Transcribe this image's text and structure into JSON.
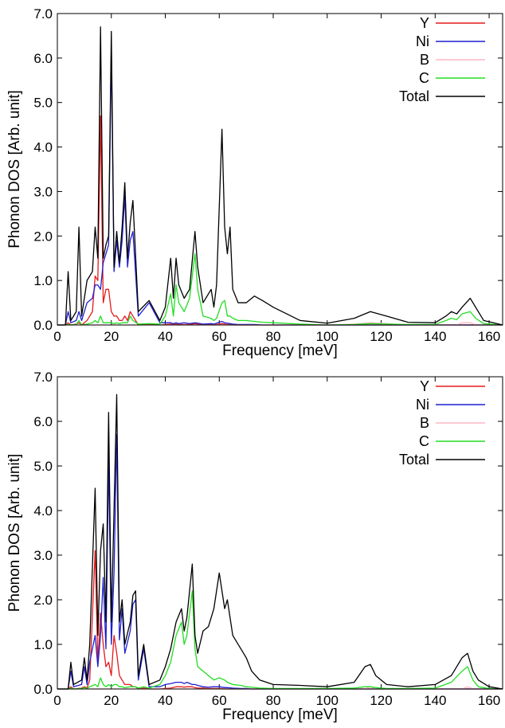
{
  "chart_data": [
    {
      "type": "line",
      "x_label": "Frequency [meV]",
      "y_label": "Phonon DOS [Arb. unit]",
      "legend": "upper right",
      "xlim": [
        0,
        165
      ],
      "xticks": [
        0,
        20,
        40,
        60,
        80,
        100,
        120,
        140,
        160
      ],
      "ylim": [
        0,
        7
      ],
      "yticks": [
        {
          "value": 0,
          "label": "0.0"
        },
        {
          "value": 1,
          "label": "1.0"
        },
        {
          "value": 2,
          "label": "2.0"
        },
        {
          "value": 3,
          "label": "3.0"
        },
        {
          "value": 4,
          "label": "4.0"
        },
        {
          "value": 5,
          "label": "5.0"
        },
        {
          "value": 6,
          "label": "6.0"
        },
        {
          "value": 7,
          "label": "7.0"
        }
      ],
      "x": [
        0,
        3,
        4,
        5,
        7,
        8,
        9,
        11,
        13,
        14,
        15,
        16,
        17,
        18,
        19,
        20,
        21,
        22,
        23,
        24,
        25,
        26,
        27,
        28,
        30,
        34,
        38,
        40,
        42,
        43,
        44,
        45,
        47,
        49,
        51,
        52,
        54,
        57,
        58,
        59,
        61,
        62,
        63,
        64,
        65,
        67,
        70,
        73,
        76,
        80,
        90,
        100,
        110,
        116,
        122,
        130,
        140,
        144,
        146,
        148,
        150,
        153,
        155,
        158,
        165
      ],
      "series": [
        {
          "name": "Y",
          "color": "#e41a1c",
          "values": [
            0,
            0,
            0.05,
            0,
            0.02,
            0.05,
            0,
            0.1,
            0.3,
            1.1,
            1.0,
            4.7,
            0.5,
            0.8,
            0.8,
            0.3,
            0.2,
            0.2,
            0.1,
            0.1,
            0.2,
            0.1,
            0.3,
            0.2,
            0,
            0.02,
            0,
            0.01,
            0.02,
            0.01,
            0.02,
            0.01,
            0.01,
            0.01,
            0.03,
            0.02,
            0.01,
            0.01,
            0,
            0.01,
            0.03,
            0.02,
            0.01,
            0.01,
            0,
            0,
            0,
            0,
            0,
            0,
            0,
            0,
            0,
            0,
            0,
            0,
            0,
            0,
            0,
            0,
            0,
            0,
            0,
            0,
            0
          ]
        },
        {
          "name": "Ni",
          "color": "#1f1fd0",
          "values": [
            0,
            0,
            0.3,
            0.05,
            0.1,
            0.3,
            0.1,
            0.5,
            0.6,
            0.9,
            0.9,
            0.8,
            1.4,
            1.6,
            1.8,
            6.2,
            1.2,
            1.9,
            1.3,
            1.9,
            2.9,
            1.3,
            1.9,
            2.1,
            0.2,
            0.5,
            0.05,
            0.05,
            0.05,
            0.03,
            0.05,
            0.03,
            0.05,
            0.03,
            0.05,
            0.04,
            0.02,
            0.03,
            0.02,
            0.04,
            0.08,
            0.05,
            0.04,
            0.03,
            0.02,
            0.01,
            0.01,
            0.01,
            0,
            0,
            0,
            0,
            0,
            0,
            0,
            0,
            0,
            0,
            0,
            0,
            0,
            0,
            0,
            0,
            0
          ]
        },
        {
          "name": "B",
          "color": "#ffb6c1",
          "values": [
            0,
            0,
            0,
            0,
            0,
            0,
            0,
            0,
            0,
            0,
            0,
            0,
            0,
            0,
            0,
            0,
            0,
            0,
            0,
            0,
            0,
            0,
            0,
            0,
            0,
            0,
            0,
            0,
            0,
            0,
            0,
            0,
            0,
            0,
            0,
            0,
            0,
            0,
            0,
            0,
            0,
            0,
            0,
            0,
            0,
            0,
            0,
            0,
            0,
            0,
            0,
            0,
            0.02,
            0.05,
            0.03,
            0,
            0,
            0,
            0,
            0,
            0.05,
            0.05,
            0,
            0,
            0
          ]
        },
        {
          "name": "C",
          "color": "#22dd22",
          "values": [
            0,
            0,
            0.01,
            0,
            0.01,
            0.1,
            0,
            0.02,
            0.05,
            0.1,
            0.05,
            0.2,
            0.05,
            0.05,
            0.05,
            0.05,
            0.03,
            0.05,
            0.03,
            0.05,
            0.05,
            0.05,
            0.2,
            0.1,
            0.02,
            0.03,
            0.02,
            0.2,
            0.7,
            0.2,
            0.9,
            0.5,
            0.3,
            0.6,
            1.6,
            0.8,
            0.2,
            0.15,
            0.1,
            0.15,
            0.5,
            0.55,
            0.2,
            0.2,
            0.15,
            0.1,
            0.1,
            0.08,
            0.06,
            0.05,
            0.02,
            0,
            0.01,
            0.03,
            0.02,
            0.01,
            0.01,
            0.1,
            0.15,
            0.12,
            0.25,
            0.3,
            0.15,
            0.03,
            0
          ]
        },
        {
          "name": "Total",
          "color": "#000000",
          "values": [
            0,
            0,
            1.2,
            0.1,
            0.3,
            2.2,
            0.2,
            1.0,
            1.2,
            2.2,
            1.5,
            6.7,
            1.5,
            1.8,
            2.0,
            6.6,
            1.3,
            2.1,
            1.4,
            2.2,
            3.2,
            1.5,
            2.3,
            2.8,
            0.3,
            0.55,
            0.1,
            0.4,
            1.5,
            0.6,
            1.5,
            0.9,
            0.6,
            0.8,
            2.1,
            1.3,
            0.5,
            0.8,
            0.4,
            0.9,
            4.4,
            2.2,
            1.6,
            2.2,
            0.8,
            0.5,
            0.5,
            0.65,
            0.55,
            0.4,
            0.1,
            0.04,
            0.15,
            0.3,
            0.2,
            0.06,
            0.05,
            0.2,
            0.3,
            0.25,
            0.4,
            0.6,
            0.4,
            0.1,
            0
          ]
        }
      ]
    },
    {
      "type": "line",
      "x_label": "Frequency [meV]",
      "y_label": "Phonon DOS [Arb. unit]",
      "legend": "upper right",
      "xlim": [
        0,
        165
      ],
      "xticks": [
        0,
        20,
        40,
        60,
        80,
        100,
        120,
        140,
        160
      ],
      "ylim": [
        0,
        7
      ],
      "yticks": [
        {
          "value": 0,
          "label": "0.0"
        },
        {
          "value": 1,
          "label": "1.0"
        },
        {
          "value": 2,
          "label": "2.0"
        },
        {
          "value": 3,
          "label": "3.0"
        },
        {
          "value": 4,
          "label": "4.0"
        },
        {
          "value": 5,
          "label": "5.0"
        },
        {
          "value": 6,
          "label": "6.0"
        },
        {
          "value": 7,
          "label": "7.0"
        }
      ],
      "x": [
        0,
        4,
        5,
        6,
        9,
        10,
        11,
        12,
        14,
        15,
        16,
        17,
        18,
        19,
        20,
        21,
        22,
        23,
        24,
        25,
        27,
        28,
        29,
        30,
        32,
        34,
        38,
        40,
        42,
        44,
        46,
        47,
        48,
        50,
        51,
        52,
        54,
        56,
        58,
        60,
        62,
        63,
        65,
        68,
        70,
        72,
        75,
        80,
        90,
        100,
        110,
        114,
        116,
        118,
        122,
        130,
        140,
        146,
        150,
        152,
        154,
        156,
        160,
        165
      ],
      "series": [
        {
          "name": "Y",
          "color": "#e41a1c",
          "values": [
            0,
            0,
            0.05,
            0,
            0.02,
            0.05,
            0.02,
            0.2,
            3.1,
            0.6,
            1.7,
            1.0,
            0.5,
            0.6,
            0.3,
            1.2,
            0.8,
            0.3,
            0.2,
            0.1,
            0.1,
            0.05,
            0.05,
            0,
            0.02,
            0,
            0,
            0.01,
            0.02,
            0.05,
            0.05,
            0.04,
            0.05,
            0.05,
            0.03,
            0.02,
            0.02,
            0.01,
            0.01,
            0.01,
            0,
            0,
            0,
            0,
            0,
            0,
            0,
            0,
            0,
            0,
            0,
            0,
            0,
            0,
            0,
            0,
            0,
            0,
            0,
            0,
            0,
            0,
            0,
            0
          ]
        },
        {
          "name": "Ni",
          "color": "#1f1fd0",
          "values": [
            0,
            0,
            0.4,
            0.05,
            0.1,
            0.5,
            0.1,
            0.6,
            1.2,
            0.5,
            1.2,
            2.5,
            0.9,
            5.2,
            1.0,
            2.6,
            5.7,
            1.1,
            1.8,
            0.8,
            1.3,
            1.9,
            2.0,
            0.2,
            0.9,
            0.05,
            0.05,
            0.1,
            0.12,
            0.15,
            0.15,
            0.12,
            0.15,
            0.1,
            0.1,
            0.08,
            0.05,
            0.04,
            0.05,
            0.05,
            0.03,
            0.03,
            0.02,
            0.01,
            0.01,
            0,
            0,
            0,
            0,
            0,
            0,
            0,
            0,
            0,
            0,
            0,
            0,
            0,
            0,
            0,
            0,
            0,
            0,
            0
          ]
        },
        {
          "name": "B",
          "color": "#ffb6c1",
          "values": [
            0,
            0,
            0,
            0,
            0,
            0,
            0,
            0,
            0,
            0,
            0,
            0,
            0,
            0,
            0,
            0,
            0,
            0,
            0,
            0,
            0,
            0,
            0,
            0,
            0,
            0,
            0,
            0,
            0,
            0,
            0,
            0,
            0,
            0,
            0,
            0,
            0,
            0,
            0,
            0,
            0,
            0,
            0,
            0,
            0,
            0,
            0,
            0,
            0,
            0,
            0,
            0,
            0.05,
            0,
            0,
            0,
            0,
            0,
            0,
            0.05,
            0,
            0,
            0,
            0
          ]
        },
        {
          "name": "C",
          "color": "#22dd22",
          "values": [
            0,
            0,
            0.02,
            0,
            0.01,
            0.03,
            0.01,
            0.05,
            0.1,
            0.05,
            0.25,
            0.1,
            0.05,
            0.1,
            0.05,
            0.1,
            0.1,
            0.05,
            0.05,
            0.03,
            0.05,
            0.05,
            0.05,
            0.02,
            0.05,
            0.02,
            0.1,
            0.3,
            0.6,
            1.2,
            1.5,
            1.0,
            1.2,
            2.2,
            0.9,
            0.5,
            0.4,
            0.3,
            0.2,
            0.25,
            0.2,
            0.15,
            0.1,
            0.08,
            0.05,
            0.04,
            0.02,
            0.01,
            0.01,
            0.01,
            0.02,
            0.05,
            0.05,
            0.03,
            0.01,
            0.01,
            0.02,
            0.15,
            0.4,
            0.5,
            0.2,
            0.05,
            0.01,
            0
          ]
        },
        {
          "name": "Total",
          "color": "#000000",
          "values": [
            0,
            0,
            0.6,
            0.1,
            0.2,
            0.7,
            0.2,
            1.0,
            4.5,
            1.2,
            3.1,
            3.7,
            1.5,
            6.2,
            1.5,
            4.0,
            6.6,
            1.5,
            2.0,
            1.0,
            1.5,
            2.1,
            2.2,
            0.3,
            1.0,
            0.1,
            0.2,
            0.5,
            0.9,
            1.5,
            1.8,
            1.3,
            1.6,
            2.8,
            1.2,
            0.8,
            1.3,
            1.4,
            1.8,
            2.6,
            1.8,
            2.0,
            1.2,
            0.9,
            0.7,
            0.4,
            0.2,
            0.1,
            0.08,
            0.05,
            0.15,
            0.5,
            0.55,
            0.3,
            0.1,
            0.05,
            0.1,
            0.3,
            0.7,
            0.8,
            0.4,
            0.2,
            0.05,
            0
          ]
        }
      ]
    }
  ]
}
